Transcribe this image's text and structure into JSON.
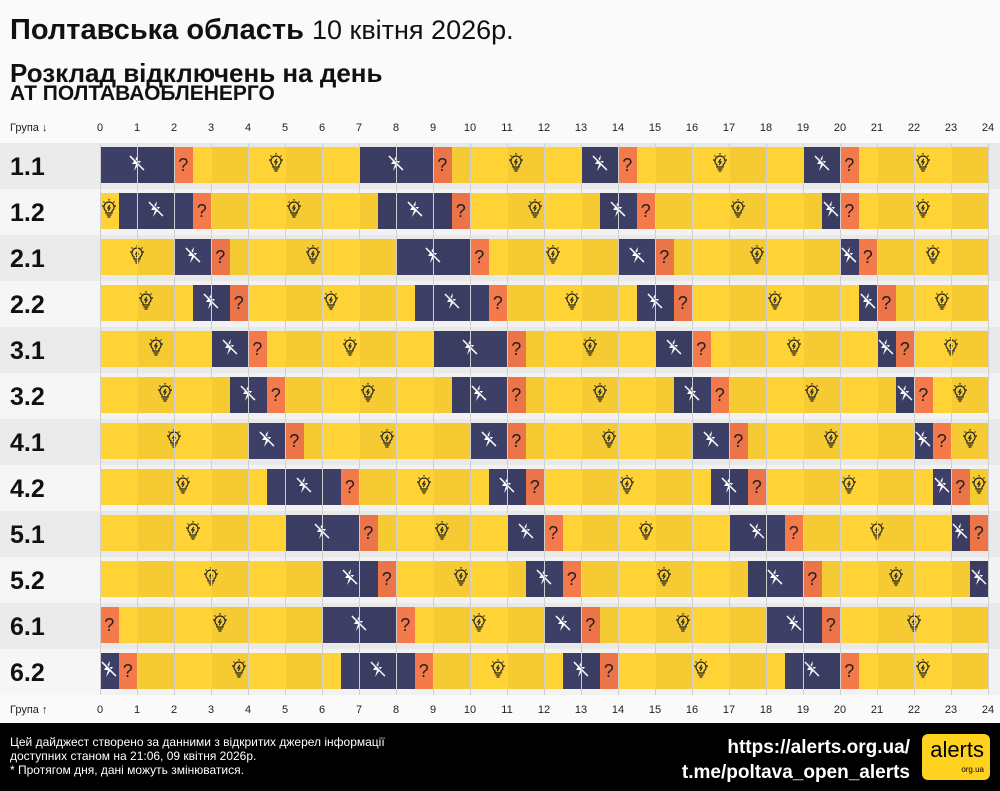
{
  "header": {
    "title": "Полтавська область",
    "date": "10 квітня 2026р.",
    "subtitle": "Розклад відключень на день",
    "org": "АТ ПОЛТАВАОБЛЕНЕРГО"
  },
  "axis": {
    "top_label": "Група ↓",
    "bottom_label": "Група ↑",
    "ticks": [
      "0",
      "1",
      "2",
      "3",
      "4",
      "5",
      "6",
      "7",
      "8",
      "9",
      "10",
      "11",
      "12",
      "13",
      "14",
      "15",
      "16",
      "17",
      "18",
      "19",
      "20",
      "21",
      "22",
      "23",
      "24"
    ]
  },
  "colors": {
    "on": "#ffd235",
    "off": "#3d3f66",
    "maybe": "#f47a4c"
  },
  "icons": {
    "on": "lightbulb-icon",
    "off": "power-off-icon",
    "maybe": "question-mark"
  },
  "maybe_symbol": "?",
  "chart_data": {
    "type": "timeline",
    "xlim": [
      0,
      24
    ],
    "groups": [
      {
        "name": "1.1",
        "segments": [
          [
            "off",
            0,
            2
          ],
          [
            "maybe",
            2,
            2.5
          ],
          [
            "on",
            2.5,
            7
          ],
          [
            "off",
            7,
            9
          ],
          [
            "maybe",
            9,
            9.5
          ],
          [
            "on",
            9.5,
            13
          ],
          [
            "off",
            13,
            14
          ],
          [
            "maybe",
            14,
            14.5
          ],
          [
            "on",
            14.5,
            19
          ],
          [
            "off",
            19,
            20
          ],
          [
            "maybe",
            20,
            20.5
          ],
          [
            "on",
            20.5,
            24
          ]
        ]
      },
      {
        "name": "1.2",
        "segments": [
          [
            "on",
            0,
            0.5
          ],
          [
            "off",
            0.5,
            2.5
          ],
          [
            "maybe",
            2.5,
            3
          ],
          [
            "on",
            3,
            7.5
          ],
          [
            "off",
            7.5,
            9.5
          ],
          [
            "maybe",
            9.5,
            10
          ],
          [
            "on",
            10,
            13.5
          ],
          [
            "off",
            13.5,
            14.5
          ],
          [
            "maybe",
            14.5,
            15
          ],
          [
            "on",
            15,
            19.5
          ],
          [
            "off",
            19.5,
            20
          ],
          [
            "maybe",
            20,
            20.5
          ],
          [
            "on",
            20.5,
            24
          ]
        ]
      },
      {
        "name": "2.1",
        "segments": [
          [
            "on",
            0,
            2
          ],
          [
            "off",
            2,
            3
          ],
          [
            "maybe",
            3,
            3.5
          ],
          [
            "on",
            3.5,
            8
          ],
          [
            "off",
            8,
            10
          ],
          [
            "maybe",
            10,
            10.5
          ],
          [
            "on",
            10.5,
            14
          ],
          [
            "off",
            14,
            15
          ],
          [
            "maybe",
            15,
            15.5
          ],
          [
            "on",
            15.5,
            20
          ],
          [
            "off",
            20,
            20.5
          ],
          [
            "maybe",
            20.5,
            21
          ],
          [
            "on",
            21,
            24
          ]
        ]
      },
      {
        "name": "2.2",
        "segments": [
          [
            "on",
            0,
            2.5
          ],
          [
            "off",
            2.5,
            3.5
          ],
          [
            "maybe",
            3.5,
            4
          ],
          [
            "on",
            4,
            8.5
          ],
          [
            "off",
            8.5,
            10.5
          ],
          [
            "maybe",
            10.5,
            11
          ],
          [
            "on",
            11,
            14.5
          ],
          [
            "off",
            14.5,
            15.5
          ],
          [
            "maybe",
            15.5,
            16
          ],
          [
            "on",
            16,
            20.5
          ],
          [
            "off",
            20.5,
            21
          ],
          [
            "maybe",
            21,
            21.5
          ],
          [
            "on",
            21.5,
            24
          ]
        ]
      },
      {
        "name": "3.1",
        "segments": [
          [
            "on",
            0,
            3
          ],
          [
            "off",
            3,
            4
          ],
          [
            "maybe",
            4,
            4.5
          ],
          [
            "on",
            4.5,
            9
          ],
          [
            "off",
            9,
            11
          ],
          [
            "maybe",
            11,
            11.5
          ],
          [
            "on",
            11.5,
            15
          ],
          [
            "off",
            15,
            16
          ],
          [
            "maybe",
            16,
            16.5
          ],
          [
            "on",
            16.5,
            21
          ],
          [
            "off",
            21,
            21.5
          ],
          [
            "maybe",
            21.5,
            22
          ],
          [
            "on",
            22,
            24
          ]
        ]
      },
      {
        "name": "3.2",
        "segments": [
          [
            "on",
            0,
            3.5
          ],
          [
            "off",
            3.5,
            4.5
          ],
          [
            "maybe",
            4.5,
            5
          ],
          [
            "on",
            5,
            9.5
          ],
          [
            "off",
            9.5,
            11
          ],
          [
            "maybe",
            11,
            11.5
          ],
          [
            "on",
            11.5,
            15.5
          ],
          [
            "off",
            15.5,
            16.5
          ],
          [
            "maybe",
            16.5,
            17
          ],
          [
            "on",
            17,
            21.5
          ],
          [
            "off",
            21.5,
            22
          ],
          [
            "maybe",
            22,
            22.5
          ],
          [
            "on",
            22.5,
            24
          ]
        ]
      },
      {
        "name": "4.1",
        "segments": [
          [
            "on",
            0,
            4
          ],
          [
            "off",
            4,
            5
          ],
          [
            "maybe",
            5,
            5.5
          ],
          [
            "on",
            5.5,
            10
          ],
          [
            "off",
            10,
            11
          ],
          [
            "maybe",
            11,
            11.5
          ],
          [
            "on",
            11.5,
            16
          ],
          [
            "off",
            16,
            17
          ],
          [
            "maybe",
            17,
            17.5
          ],
          [
            "on",
            17.5,
            22
          ],
          [
            "off",
            22,
            22.5
          ],
          [
            "maybe",
            22.5,
            23
          ],
          [
            "on",
            23,
            24
          ]
        ]
      },
      {
        "name": "4.2",
        "segments": [
          [
            "on",
            0,
            4.5
          ],
          [
            "off",
            4.5,
            6.5
          ],
          [
            "maybe",
            6.5,
            7
          ],
          [
            "on",
            7,
            10.5
          ],
          [
            "off",
            10.5,
            11.5
          ],
          [
            "maybe",
            11.5,
            12
          ],
          [
            "on",
            12,
            16.5
          ],
          [
            "off",
            16.5,
            17.5
          ],
          [
            "maybe",
            17.5,
            18
          ],
          [
            "on",
            18,
            22.5
          ],
          [
            "off",
            22.5,
            23
          ],
          [
            "maybe",
            23,
            23.5
          ],
          [
            "on",
            23.5,
            24
          ]
        ]
      },
      {
        "name": "5.1",
        "segments": [
          [
            "on",
            0,
            5
          ],
          [
            "off",
            5,
            7
          ],
          [
            "maybe",
            7,
            7.5
          ],
          [
            "on",
            7.5,
            11
          ],
          [
            "off",
            11,
            12
          ],
          [
            "maybe",
            12,
            12.5
          ],
          [
            "on",
            12.5,
            17
          ],
          [
            "off",
            17,
            18.5
          ],
          [
            "maybe",
            18.5,
            19
          ],
          [
            "on",
            19,
            23
          ],
          [
            "off",
            23,
            23.5
          ],
          [
            "maybe",
            23.5,
            24
          ]
        ]
      },
      {
        "name": "5.2",
        "segments": [
          [
            "on",
            0,
            6
          ],
          [
            "off",
            6,
            7.5
          ],
          [
            "maybe",
            7.5,
            8
          ],
          [
            "on",
            8,
            11.5
          ],
          [
            "off",
            11.5,
            12.5
          ],
          [
            "maybe",
            12.5,
            13
          ],
          [
            "on",
            13,
            17.5
          ],
          [
            "off",
            17.5,
            19
          ],
          [
            "maybe",
            19,
            19.5
          ],
          [
            "on",
            19.5,
            23.5
          ],
          [
            "off",
            23.5,
            24
          ]
        ]
      },
      {
        "name": "6.1",
        "segments": [
          [
            "maybe",
            0,
            0.5
          ],
          [
            "on",
            0.5,
            6
          ],
          [
            "off",
            6,
            8
          ],
          [
            "maybe",
            8,
            8.5
          ],
          [
            "on",
            8.5,
            12
          ],
          [
            "off",
            12,
            13
          ],
          [
            "maybe",
            13,
            13.5
          ],
          [
            "on",
            13.5,
            18
          ],
          [
            "off",
            18,
            19.5
          ],
          [
            "maybe",
            19.5,
            20
          ],
          [
            "on",
            20,
            24
          ]
        ]
      },
      {
        "name": "6.2",
        "segments": [
          [
            "off",
            0,
            0.5
          ],
          [
            "maybe",
            0.5,
            1
          ],
          [
            "on",
            1,
            6.5
          ],
          [
            "off",
            6.5,
            8.5
          ],
          [
            "maybe",
            8.5,
            9
          ],
          [
            "on",
            9,
            12.5
          ],
          [
            "off",
            12.5,
            13.5
          ],
          [
            "maybe",
            13.5,
            14
          ],
          [
            "on",
            14,
            18.5
          ],
          [
            "off",
            18.5,
            20
          ],
          [
            "maybe",
            20,
            20.5
          ],
          [
            "on",
            20.5,
            24
          ]
        ]
      }
    ]
  },
  "footer": {
    "note_1": "Цей дайджест створено за данними з відкритих джерел інформації",
    "note_2": "доступних станом на 21:06, 09 квітня 2026р.",
    "note_3": "* Протягом дня, дані можуть змінюватися.",
    "link_site": "https://alerts.org.ua/",
    "link_tg": "t.me/poltava_open_alerts",
    "logo_text": "alerts",
    "logo_sub": "org.ua"
  }
}
